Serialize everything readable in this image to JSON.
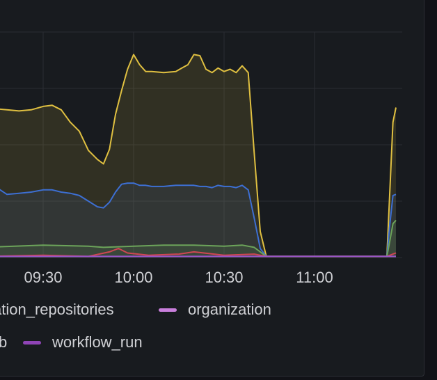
{
  "chart_data": {
    "type": "area",
    "xlabel": "",
    "ylabel": "",
    "x_ticks": [
      "09:30",
      "10:00",
      "10:30",
      "11:00"
    ],
    "grid": true,
    "legend_position": "bottom",
    "series": [
      {
        "color": "#e0c041",
        "fill": "rgba(224,192,65,0.13)",
        "x": [
          "09:10",
          "09:14",
          "09:18",
          "09:22",
          "09:26",
          "09:30",
          "09:33",
          "09:36",
          "09:39",
          "09:42",
          "09:45",
          "09:48",
          "09:50",
          "09:52",
          "09:54",
          "09:56",
          "09:58",
          "10:00",
          "10:02",
          "10:04",
          "10:06",
          "10:10",
          "10:14",
          "10:16",
          "10:18",
          "10:20",
          "10:22",
          "10:24",
          "10:26",
          "10:28",
          "10:30",
          "10:32",
          "10:34",
          "10:36",
          "10:38",
          "10:40",
          "10:42",
          "10:44",
          "10:46",
          "10:50",
          "11:00",
          "11:10",
          "11:20",
          "11:24",
          "11:25",
          "11:26",
          "11:27"
        ],
        "values": [
          130,
          132,
          131,
          130,
          131,
          134,
          135,
          131,
          120,
          112,
          95,
          87,
          83,
          96,
          127,
          148,
          167,
          180,
          171,
          165,
          165,
          164,
          165,
          168,
          171,
          180,
          179,
          167,
          164,
          168,
          165,
          167,
          164,
          170,
          164,
          93,
          23,
          1,
          1,
          1,
          1,
          1,
          1,
          1,
          60,
          120,
          133
        ]
      },
      {
        "color": "#3d6fd3",
        "fill": "rgba(61,111,211,0.10)",
        "x": [
          "09:10",
          "09:14",
          "09:18",
          "09:22",
          "09:26",
          "09:30",
          "09:33",
          "09:36",
          "09:39",
          "09:42",
          "09:45",
          "09:48",
          "09:50",
          "09:52",
          "09:54",
          "09:56",
          "09:58",
          "10:00",
          "10:02",
          "10:04",
          "10:06",
          "10:10",
          "10:14",
          "10:16",
          "10:18",
          "10:20",
          "10:22",
          "10:24",
          "10:26",
          "10:28",
          "10:30",
          "10:32",
          "10:34",
          "10:36",
          "10:38",
          "10:40",
          "10:42",
          "10:44",
          "10:46",
          "10:50",
          "11:00",
          "11:10",
          "11:20",
          "11:24",
          "11:25",
          "11:26",
          "11:27"
        ],
        "values": [
          62,
          63,
          56,
          57,
          58,
          60,
          60,
          58,
          57,
          55,
          50,
          45,
          44,
          49,
          58,
          65,
          66,
          66,
          64,
          64,
          63,
          63,
          64,
          64,
          64,
          64,
          63,
          63,
          62,
          64,
          63,
          63,
          62,
          64,
          60,
          35,
          8,
          1,
          1,
          1,
          1,
          1,
          1,
          1,
          30,
          55,
          56
        ]
      },
      {
        "color": "#6ca45a",
        "fill": "rgba(108,164,90,0.16)",
        "x": [
          "09:10",
          "09:30",
          "09:45",
          "09:50",
          "10:00",
          "10:10",
          "10:20",
          "10:30",
          "10:36",
          "10:40",
          "10:44",
          "11:00",
          "11:20",
          "11:24",
          "11:25",
          "11:26",
          "11:27"
        ],
        "values": [
          9,
          11,
          10,
          9,
          10,
          11,
          11,
          10,
          11,
          9,
          1,
          1,
          1,
          1,
          15,
          30,
          33
        ]
      },
      {
        "color": "#d04653",
        "fill": "rgba(208,70,83,0.0)",
        "x": [
          "09:10",
          "09:30",
          "09:45",
          "09:52",
          "09:55",
          "09:58",
          "10:05",
          "10:15",
          "10:20",
          "10:30",
          "10:40",
          "10:44",
          "11:00",
          "11:24",
          "11:26",
          "11:27"
        ],
        "values": [
          1,
          2,
          1,
          5,
          8,
          4,
          2,
          3,
          5,
          2,
          3,
          1,
          1,
          1,
          3,
          4
        ]
      },
      {
        "color": "#9a55c9",
        "fill": "rgba(154,85,201,0.0)",
        "x": [
          "09:10",
          "10:44",
          "11:00",
          "11:27"
        ],
        "values": [
          1,
          1,
          1,
          1
        ]
      }
    ],
    "legend": [
      {
        "label": "ation_repositories",
        "color": "#6ca45a"
      },
      {
        "label": "organization",
        "color": "#c97fdc"
      },
      {
        "label": "b",
        "color": "#3d6fd3"
      },
      {
        "label": "workflow_run",
        "color": "#8f44b6"
      }
    ]
  }
}
